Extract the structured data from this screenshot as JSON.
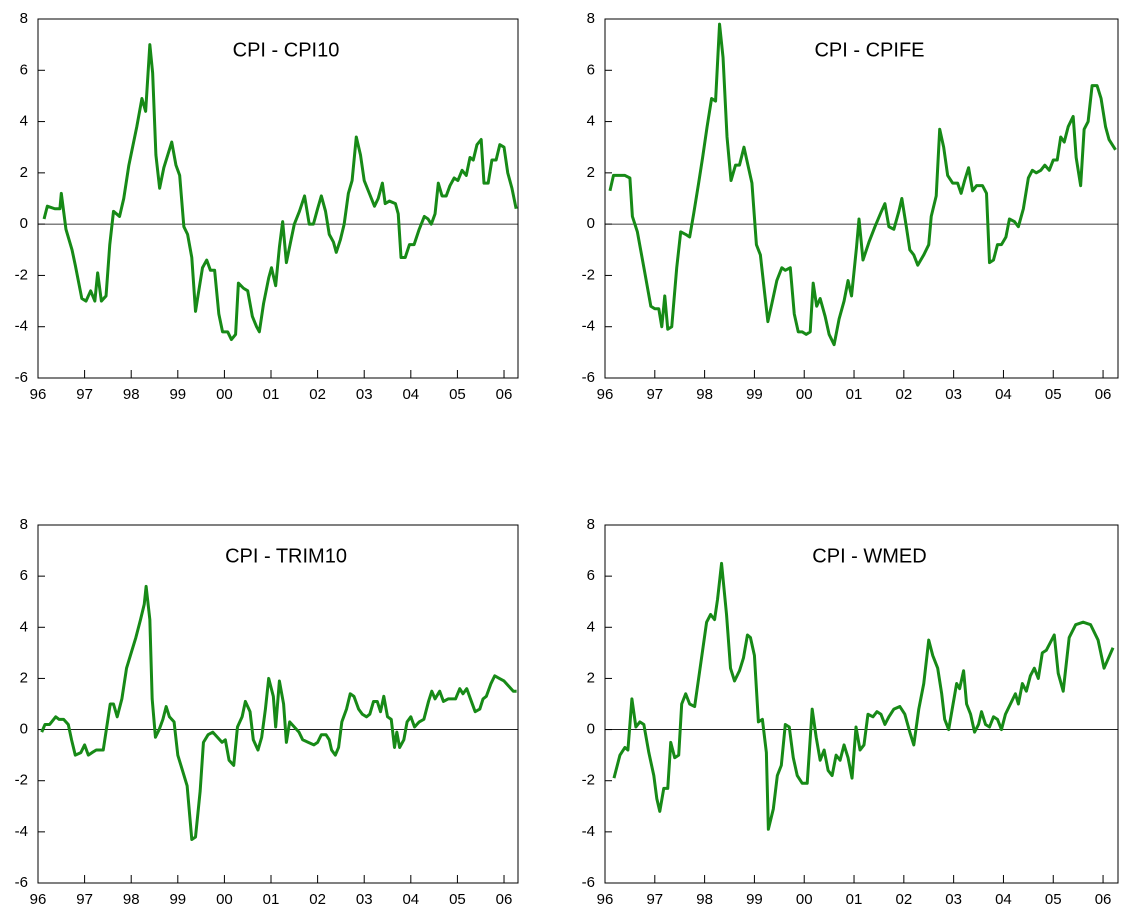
{
  "chart_data": [
    {
      "type": "line",
      "title": "CPI - CPI10",
      "color": "#178a17",
      "xlim": [
        1996,
        2006.3
      ],
      "ylim": [
        -6,
        8
      ],
      "reference_line": 0,
      "xticks": [
        {
          "value": 1996,
          "label": "96"
        },
        {
          "value": 1997,
          "label": "97"
        },
        {
          "value": 1998,
          "label": "98"
        },
        {
          "value": 1999,
          "label": "99"
        },
        {
          "value": 2000,
          "label": "00"
        },
        {
          "value": 2001,
          "label": "01"
        },
        {
          "value": 2002,
          "label": "02"
        },
        {
          "value": 2003,
          "label": "03"
        },
        {
          "value": 2004,
          "label": "04"
        },
        {
          "value": 2005,
          "label": "05"
        },
        {
          "value": 2006,
          "label": "06"
        }
      ],
      "yticks": [
        -6,
        -4,
        -2,
        0,
        2,
        4,
        6,
        8
      ],
      "x": [
        1996.13,
        1996.2,
        1996.36,
        1996.47,
        1996.5,
        1996.6,
        1996.73,
        1996.8,
        1996.94,
        1997.03,
        1997.13,
        1997.22,
        1997.28,
        1997.36,
        1997.46,
        1997.54,
        1997.62,
        1997.75,
        1997.84,
        1997.95,
        1998.12,
        1998.23,
        1998.31,
        1998.4,
        1998.46,
        1998.53,
        1998.61,
        1998.7,
        1998.87,
        1998.96,
        1999.04,
        1999.13,
        1999.21,
        1999.3,
        1999.38,
        1999.45,
        1999.53,
        1999.62,
        1999.7,
        1999.79,
        1999.88,
        1999.96,
        2000.07,
        2000.15,
        2000.24,
        2000.3,
        2000.41,
        2000.5,
        2000.6,
        2000.69,
        2000.75,
        2000.84,
        2000.95,
        2001.01,
        2001.1,
        2001.18,
        2001.25,
        2001.33,
        2001.42,
        2001.5,
        2001.61,
        2001.72,
        2001.82,
        2001.91,
        2002,
        2002.08,
        2002.17,
        2002.25,
        2002.34,
        2002.4,
        2002.49,
        2002.57,
        2002.66,
        2002.74,
        2002.83,
        2002.92,
        2003,
        2003.11,
        2003.22,
        2003.3,
        2003.39,
        2003.45,
        2003.54,
        2003.67,
        2003.73,
        2003.79,
        2003.88,
        2003.97,
        2004.07,
        2004.18,
        2004.29,
        2004.37,
        2004.44,
        2004.52,
        2004.59,
        2004.67,
        2004.76,
        2004.84,
        2004.93,
        2005.01,
        2005.1,
        2005.19,
        2005.27,
        2005.34,
        2005.42,
        2005.51,
        2005.57,
        2005.66,
        2005.74,
        2005.83,
        2005.91,
        2006,
        2006.08,
        2006.17,
        2006.26
      ],
      "values": [
        0.2,
        0.7,
        0.6,
        0.6,
        1.2,
        -0.2,
        -1,
        -1.6,
        -2.9,
        -3,
        -2.6,
        -3,
        -1.9,
        -3,
        -2.8,
        -0.8,
        0.5,
        0.3,
        1,
        2.3,
        3.8,
        4.9,
        4.4,
        7,
        5.9,
        2.7,
        1.4,
        2.2,
        3.2,
        2.3,
        1.9,
        -0.1,
        -0.4,
        -1.3,
        -3.4,
        -2.6,
        -1.7,
        -1.4,
        -1.8,
        -1.8,
        -3.5,
        -4.2,
        -4.2,
        -4.5,
        -4.3,
        -2.3,
        -2.5,
        -2.6,
        -3.6,
        -4,
        -4.2,
        -3.1,
        -2.1,
        -1.7,
        -2.4,
        -0.9,
        0.1,
        -1.5,
        -0.7,
        0,
        0.5,
        1.1,
        0,
        0,
        0.6,
        1.1,
        0.5,
        -0.4,
        -0.7,
        -1.1,
        -0.6,
        0,
        1.2,
        1.7,
        3.4,
        2.7,
        1.7,
        1.2,
        0.7,
        1,
        1.6,
        0.8,
        0.9,
        0.8,
        0.4,
        -1.3,
        -1.3,
        -0.8,
        -0.8,
        -0.2,
        0.3,
        0.2,
        0,
        0.4,
        1.6,
        1.1,
        1.1,
        1.5,
        1.8,
        1.7,
        2.1,
        1.9,
        2.6,
        2.5,
        3.1,
        3.3,
        1.6,
        1.6,
        2.5,
        2.5,
        3.1,
        3,
        2,
        1.4,
        0.6
      ]
    },
    {
      "type": "line",
      "title": "CPI - CPIFE",
      "color": "#178a17",
      "xlim": [
        1996,
        2006.3
      ],
      "ylim": [
        -6,
        8
      ],
      "reference_line": 0,
      "xticks": [
        {
          "value": 1996,
          "label": "96"
        },
        {
          "value": 1997,
          "label": "97"
        },
        {
          "value": 1998,
          "label": "98"
        },
        {
          "value": 1999,
          "label": "99"
        },
        {
          "value": 2000,
          "label": "00"
        },
        {
          "value": 2001,
          "label": "01"
        },
        {
          "value": 2002,
          "label": "02"
        },
        {
          "value": 2003,
          "label": "03"
        },
        {
          "value": 2004,
          "label": "04"
        },
        {
          "value": 2005,
          "label": "05"
        },
        {
          "value": 2006,
          "label": "06"
        }
      ],
      "yticks": [
        -6,
        -4,
        -2,
        0,
        2,
        4,
        6,
        8
      ],
      "x": [
        1996.1,
        1996.17,
        1996.4,
        1996.5,
        1996.55,
        1996.65,
        1996.8,
        1996.92,
        1997,
        1997.08,
        1997.14,
        1997.2,
        1997.26,
        1997.34,
        1997.44,
        1997.52,
        1997.62,
        1997.7,
        1997.78,
        1997.88,
        1997.96,
        1998.05,
        1998.14,
        1998.22,
        1998.3,
        1998.37,
        1998.45,
        1998.53,
        1998.62,
        1998.7,
        1998.79,
        1998.87,
        1998.95,
        1999.04,
        1999.12,
        1999.2,
        1999.27,
        1999.35,
        1999.45,
        1999.55,
        1999.62,
        1999.72,
        1999.8,
        1999.88,
        1999.96,
        2000.04,
        2000.12,
        2000.18,
        2000.25,
        2000.32,
        2000.42,
        2000.5,
        2000.6,
        2000.7,
        2000.8,
        2000.88,
        2000.95,
        2001.05,
        2001.1,
        2001.18,
        2001.3,
        2001.42,
        2001.55,
        2001.62,
        2001.7,
        2001.8,
        2001.9,
        2001.96,
        2002.05,
        2002.12,
        2002.2,
        2002.28,
        2002.4,
        2002.5,
        2002.55,
        2002.65,
        2002.72,
        2002.8,
        2002.88,
        2002.98,
        2003.08,
        2003.15,
        2003.22,
        2003.3,
        2003.38,
        2003.46,
        2003.58,
        2003.66,
        2003.72,
        2003.8,
        2003.88,
        2003.96,
        2004.05,
        2004.12,
        2004.22,
        2004.3,
        2004.4,
        2004.5,
        2004.58,
        2004.66,
        2004.75,
        2004.83,
        2004.92,
        2005,
        2005.08,
        2005.15,
        2005.22,
        2005.3,
        2005.4,
        2005.46,
        2005.55,
        2005.62,
        2005.7,
        2005.78,
        2005.88,
        2005.96,
        2006.05,
        2006.12,
        2006.25
      ],
      "values": [
        1.3,
        1.9,
        1.9,
        1.8,
        0.3,
        -0.3,
        -1.9,
        -3.2,
        -3.3,
        -3.3,
        -4,
        -2.8,
        -4.1,
        -4,
        -1.7,
        -0.3,
        -0.4,
        -0.5,
        0.4,
        1.6,
        2.6,
        3.8,
        4.9,
        4.8,
        7.8,
        6.5,
        3.4,
        1.7,
        2.3,
        2.3,
        3,
        2.3,
        1.6,
        -0.8,
        -1.2,
        -2.6,
        -3.8,
        -3.1,
        -2.2,
        -1.7,
        -1.8,
        -1.7,
        -3.5,
        -4.2,
        -4.2,
        -4.3,
        -4.2,
        -2.3,
        -3.2,
        -2.9,
        -3.6,
        -4.3,
        -4.7,
        -3.7,
        -3,
        -2.2,
        -2.8,
        -0.9,
        0.2,
        -1.4,
        -0.7,
        -0.1,
        0.5,
        0.8,
        -0.1,
        -0.2,
        0.5,
        1,
        -0.1,
        -1,
        -1.2,
        -1.6,
        -1.2,
        -0.8,
        0.3,
        1.1,
        3.7,
        3,
        1.9,
        1.6,
        1.6,
        1.2,
        1.7,
        2.2,
        1.3,
        1.5,
        1.5,
        1.2,
        -1.5,
        -1.4,
        -0.8,
        -0.8,
        -0.5,
        0.2,
        0.1,
        -0.1,
        0.6,
        1.8,
        2.1,
        2,
        2.1,
        2.3,
        2.1,
        2.5,
        2.5,
        3.4,
        3.2,
        3.8,
        4.2,
        2.6,
        1.5,
        3.7,
        4,
        5.4,
        5.4,
        4.9,
        3.8,
        3.3,
        2.9
      ]
    },
    {
      "type": "line",
      "title": "CPI - TRIM10",
      "color": "#178a17",
      "xlim": [
        1996,
        2006.3
      ],
      "ylim": [
        -6,
        8
      ],
      "reference_line": 0,
      "xticks": [
        {
          "value": 1996,
          "label": "96"
        },
        {
          "value": 1997,
          "label": "97"
        },
        {
          "value": 1998,
          "label": "98"
        },
        {
          "value": 1999,
          "label": "99"
        },
        {
          "value": 2000,
          "label": "00"
        },
        {
          "value": 2001,
          "label": "01"
        },
        {
          "value": 2002,
          "label": "02"
        },
        {
          "value": 2003,
          "label": "03"
        },
        {
          "value": 2004,
          "label": "04"
        },
        {
          "value": 2005,
          "label": "05"
        },
        {
          "value": 2006,
          "label": "06"
        }
      ],
      "yticks": [
        -6,
        -4,
        -2,
        0,
        2,
        4,
        6,
        8
      ],
      "x": [
        1996.08,
        1996.15,
        1996.25,
        1996.38,
        1996.45,
        1996.55,
        1996.65,
        1996.72,
        1996.8,
        1996.92,
        1997,
        1997.08,
        1997.16,
        1997.25,
        1997.4,
        1997.45,
        1997.55,
        1997.62,
        1997.7,
        1997.8,
        1997.9,
        1998,
        1998.1,
        1998.2,
        1998.28,
        1998.32,
        1998.4,
        1998.45,
        1998.52,
        1998.6,
        1998.68,
        1998.75,
        1998.82,
        1998.92,
        1999,
        1999.1,
        1999.2,
        1999.3,
        1999.38,
        1999.48,
        1999.55,
        1999.65,
        1999.75,
        1999.85,
        1999.95,
        2000.02,
        2000.1,
        2000.2,
        2000.28,
        2000.38,
        2000.45,
        2000.55,
        2000.62,
        2000.72,
        2000.8,
        2000.88,
        2000.95,
        2001.05,
        2001.1,
        2001.18,
        2001.27,
        2001.33,
        2001.4,
        2001.5,
        2001.6,
        2001.68,
        2001.8,
        2001.92,
        2002,
        2002.08,
        2002.18,
        2002.25,
        2002.3,
        2002.38,
        2002.45,
        2002.52,
        2002.62,
        2002.7,
        2002.78,
        2002.88,
        2002.96,
        2003.05,
        2003.12,
        2003.2,
        2003.28,
        2003.35,
        2003.42,
        2003.5,
        2003.58,
        2003.65,
        2003.7,
        2003.76,
        2003.85,
        2003.92,
        2004,
        2004.08,
        2004.18,
        2004.28,
        2004.38,
        2004.45,
        2004.52,
        2004.62,
        2004.7,
        2004.8,
        2004.9,
        2004.96,
        2005.05,
        2005.12,
        2005.2,
        2005.3,
        2005.38,
        2005.48,
        2005.55,
        2005.62,
        2005.72,
        2005.8,
        2005.9,
        2006,
        2006.1,
        2006.2,
        2006.27
      ],
      "values": [
        -0.1,
        0.2,
        0.2,
        0.5,
        0.4,
        0.4,
        0.2,
        -0.4,
        -1,
        -0.9,
        -0.6,
        -1,
        -0.9,
        -0.8,
        -0.8,
        -0.2,
        1,
        1,
        0.5,
        1.2,
        2.4,
        3,
        3.6,
        4.3,
        4.9,
        5.6,
        4.3,
        1.2,
        -0.3,
        0,
        0.4,
        0.9,
        0.5,
        0.3,
        -1,
        -1.6,
        -2.2,
        -4.3,
        -4.2,
        -2.4,
        -0.5,
        -0.2,
        -0.1,
        -0.3,
        -0.5,
        -0.4,
        -1.2,
        -1.4,
        0.1,
        0.5,
        1.1,
        0.7,
        -0.4,
        -0.8,
        -0.3,
        0.8,
        2,
        1.3,
        0.1,
        1.9,
        1,
        -0.5,
        0.3,
        0.1,
        -0.1,
        -0.4,
        -0.5,
        -0.6,
        -0.5,
        -0.2,
        -0.2,
        -0.4,
        -0.8,
        -1,
        -0.7,
        0.3,
        0.8,
        1.4,
        1.3,
        0.8,
        0.6,
        0.5,
        0.6,
        1.1,
        1.1,
        0.7,
        1.3,
        0.5,
        0.4,
        -0.7,
        -0.1,
        -0.7,
        -0.4,
        0.3,
        0.5,
        0.1,
        0.3,
        0.4,
        1.1,
        1.5,
        1.2,
        1.5,
        1.1,
        1.2,
        1.2,
        1.2,
        1.6,
        1.4,
        1.6,
        1.1,
        0.7,
        0.8,
        1.2,
        1.3,
        1.8,
        2.1,
        2,
        1.9,
        1.7,
        1.5,
        1.5
      ]
    },
    {
      "type": "line",
      "title": "CPI - WMED",
      "color": "#178a17",
      "xlim": [
        1996,
        2006.3
      ],
      "ylim": [
        -6,
        8
      ],
      "reference_line": 0,
      "xticks": [
        {
          "value": 1996,
          "label": "96"
        },
        {
          "value": 1997,
          "label": "97"
        },
        {
          "value": 1998,
          "label": "98"
        },
        {
          "value": 1999,
          "label": "99"
        },
        {
          "value": 2000,
          "label": "00"
        },
        {
          "value": 2001,
          "label": "01"
        },
        {
          "value": 2002,
          "label": "02"
        },
        {
          "value": 2003,
          "label": "03"
        },
        {
          "value": 2004,
          "label": "04"
        },
        {
          "value": 2005,
          "label": "05"
        },
        {
          "value": 2006,
          "label": "06"
        }
      ],
      "yticks": [
        -6,
        -4,
        -2,
        0,
        2,
        4,
        6,
        8
      ],
      "x": [
        1996.18,
        1996.3,
        1996.4,
        1996.46,
        1996.54,
        1996.62,
        1996.7,
        1996.78,
        1996.88,
        1996.98,
        1997.04,
        1997.1,
        1997.18,
        1997.26,
        1997.32,
        1997.4,
        1997.48,
        1997.54,
        1997.62,
        1997.7,
        1997.8,
        1997.88,
        1997.96,
        1998.04,
        1998.12,
        1998.2,
        1998.26,
        1998.34,
        1998.44,
        1998.52,
        1998.6,
        1998.7,
        1998.78,
        1998.86,
        1998.92,
        1999,
        1999.08,
        1999.16,
        1999.24,
        1999.28,
        1999.38,
        1999.46,
        1999.54,
        1999.62,
        1999.7,
        1999.78,
        1999.86,
        1999.96,
        2000.06,
        2000.16,
        2000.24,
        2000.32,
        2000.4,
        2000.48,
        2000.56,
        2000.64,
        2000.72,
        2000.8,
        2000.88,
        2000.96,
        2001.04,
        2001.12,
        2001.2,
        2001.28,
        2001.38,
        2001.46,
        2001.54,
        2001.62,
        2001.7,
        2001.8,
        2001.92,
        2002.02,
        2002.12,
        2002.2,
        2002.3,
        2002.4,
        2002.5,
        2002.58,
        2002.68,
        2002.76,
        2002.82,
        2002.9,
        2002.98,
        2003.06,
        2003.12,
        2003.2,
        2003.26,
        2003.34,
        2003.42,
        2003.5,
        2003.56,
        2003.64,
        2003.72,
        2003.8,
        2003.88,
        2003.96,
        2004.04,
        2004.14,
        2004.24,
        2004.3,
        2004.38,
        2004.46,
        2004.54,
        2004.62,
        2004.7,
        2004.78,
        2004.86,
        2004.94,
        2005.02,
        2005.1,
        2005.2,
        2005.32,
        2005.45,
        2005.6,
        2005.75,
        2005.9,
        2006.02,
        2006.2
      ],
      "values": [
        -1.9,
        -1,
        -0.7,
        -0.8,
        1.2,
        0.1,
        0.3,
        0.2,
        -0.9,
        -1.8,
        -2.7,
        -3.2,
        -2.3,
        -2.3,
        -0.5,
        -1.1,
        -1,
        1,
        1.4,
        1,
        0.9,
        2,
        3.1,
        4.2,
        4.5,
        4.3,
        5.1,
        6.5,
        4.5,
        2.4,
        1.9,
        2.3,
        2.8,
        3.7,
        3.6,
        2.9,
        0.3,
        0.4,
        -0.9,
        -3.9,
        -3.1,
        -1.8,
        -1.4,
        0.2,
        0.1,
        -1.1,
        -1.8,
        -2.1,
        -2.1,
        0.8,
        -0.3,
        -1.2,
        -0.8,
        -1.6,
        -1.8,
        -1,
        -1.2,
        -0.6,
        -1.1,
        -1.9,
        0.1,
        -0.8,
        -0.6,
        0.6,
        0.5,
        0.7,
        0.6,
        0.2,
        0.5,
        0.8,
        0.9,
        0.6,
        -0.1,
        -0.6,
        0.8,
        1.8,
        3.5,
        2.9,
        2.4,
        1.4,
        0.4,
        0,
        0.9,
        1.8,
        1.6,
        2.3,
        1,
        0.6,
        -0.1,
        0.2,
        0.7,
        0.2,
        0.1,
        0.5,
        0.4,
        0,
        0.6,
        1,
        1.4,
        1,
        1.8,
        1.5,
        2.1,
        2.4,
        2,
        3,
        3.1,
        3.4,
        3.7,
        2.2,
        1.5,
        3.6,
        4.1,
        4.2,
        4.1,
        3.5,
        2.4,
        3.2
      ]
    }
  ]
}
